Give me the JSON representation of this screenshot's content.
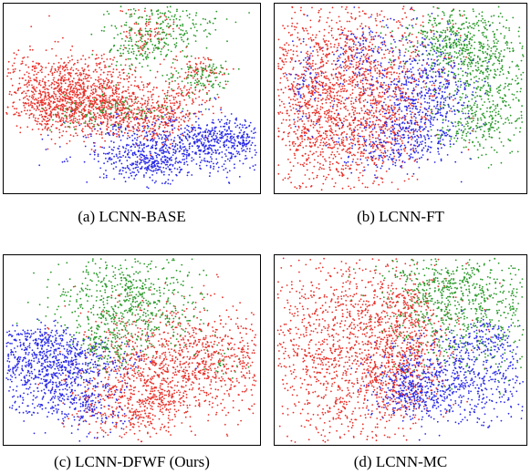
{
  "figure": {
    "colors": {
      "red": "#e8312a",
      "green": "#2a9a2a",
      "blue": "#2a2ae8"
    },
    "captions": [
      "(a)  LCNN-BASE",
      "(b)  LCNN-FT",
      "(c)  LCNN-DFWF (Ours)",
      "(d)  LCNN-MC"
    ]
  },
  "chart_data": [
    {
      "type": "scatter",
      "title": "(a)  LCNN-BASE",
      "series": [
        {
          "color": "red"
        },
        {
          "color": "green"
        },
        {
          "color": "blue"
        }
      ],
      "grid": false
    },
    {
      "type": "scatter",
      "title": "(b)  LCNN-FT",
      "series": [
        {
          "color": "red"
        },
        {
          "color": "green"
        },
        {
          "color": "blue"
        }
      ],
      "grid": false
    },
    {
      "type": "scatter",
      "title": "(c)  LCNN-DFWF (Ours)",
      "series": [
        {
          "color": "red"
        },
        {
          "color": "green"
        },
        {
          "color": "blue"
        }
      ],
      "grid": false
    },
    {
      "type": "scatter",
      "title": "(d)  LCNN-MC",
      "series": [
        {
          "color": "red"
        },
        {
          "color": "green"
        },
        {
          "color": "blue"
        }
      ],
      "grid": false
    }
  ]
}
